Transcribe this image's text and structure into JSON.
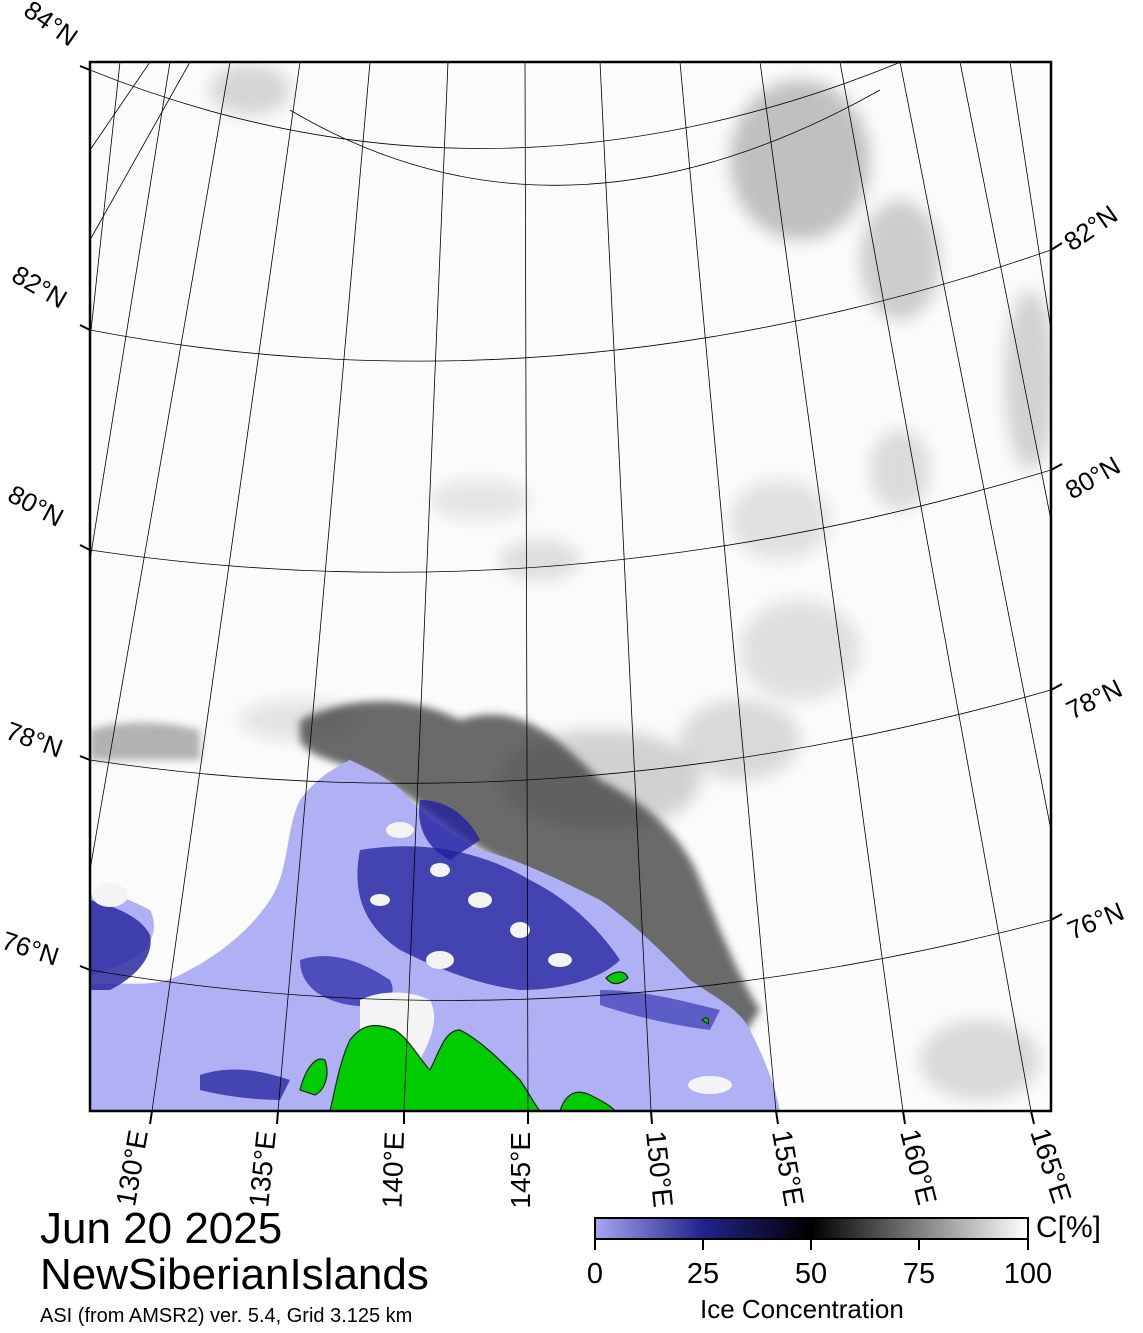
{
  "map": {
    "date": "Jun 20 2025",
    "region": "NewSiberianIslands",
    "source_note": "ASI (from AMSR2) ver. 5.4,  Grid 3.125 km",
    "projection": "polar stereographic",
    "lat_labels_left": [
      "84°N",
      "82°N",
      "80°N",
      "78°N",
      "76°N"
    ],
    "lat_labels_right": [
      "82°N",
      "80°N",
      "78°N",
      "76°N"
    ],
    "lon_labels_bottom": [
      "130°E",
      "135°E",
      "140°E",
      "145°E",
      "150°E",
      "155°E",
      "160°E",
      "165°E"
    ],
    "colors": {
      "land": "#00cc00",
      "open_water": "#b0b0f5",
      "ice_low": "#1a1a9c",
      "ice_mid": "#000000",
      "ice_high": "#ffffff"
    }
  },
  "colorbar": {
    "label": "Ice Concentration",
    "unit": "C[%]",
    "ticks": [
      "0",
      "25",
      "50",
      "75",
      "100"
    ],
    "range": [
      0,
      100
    ]
  }
}
